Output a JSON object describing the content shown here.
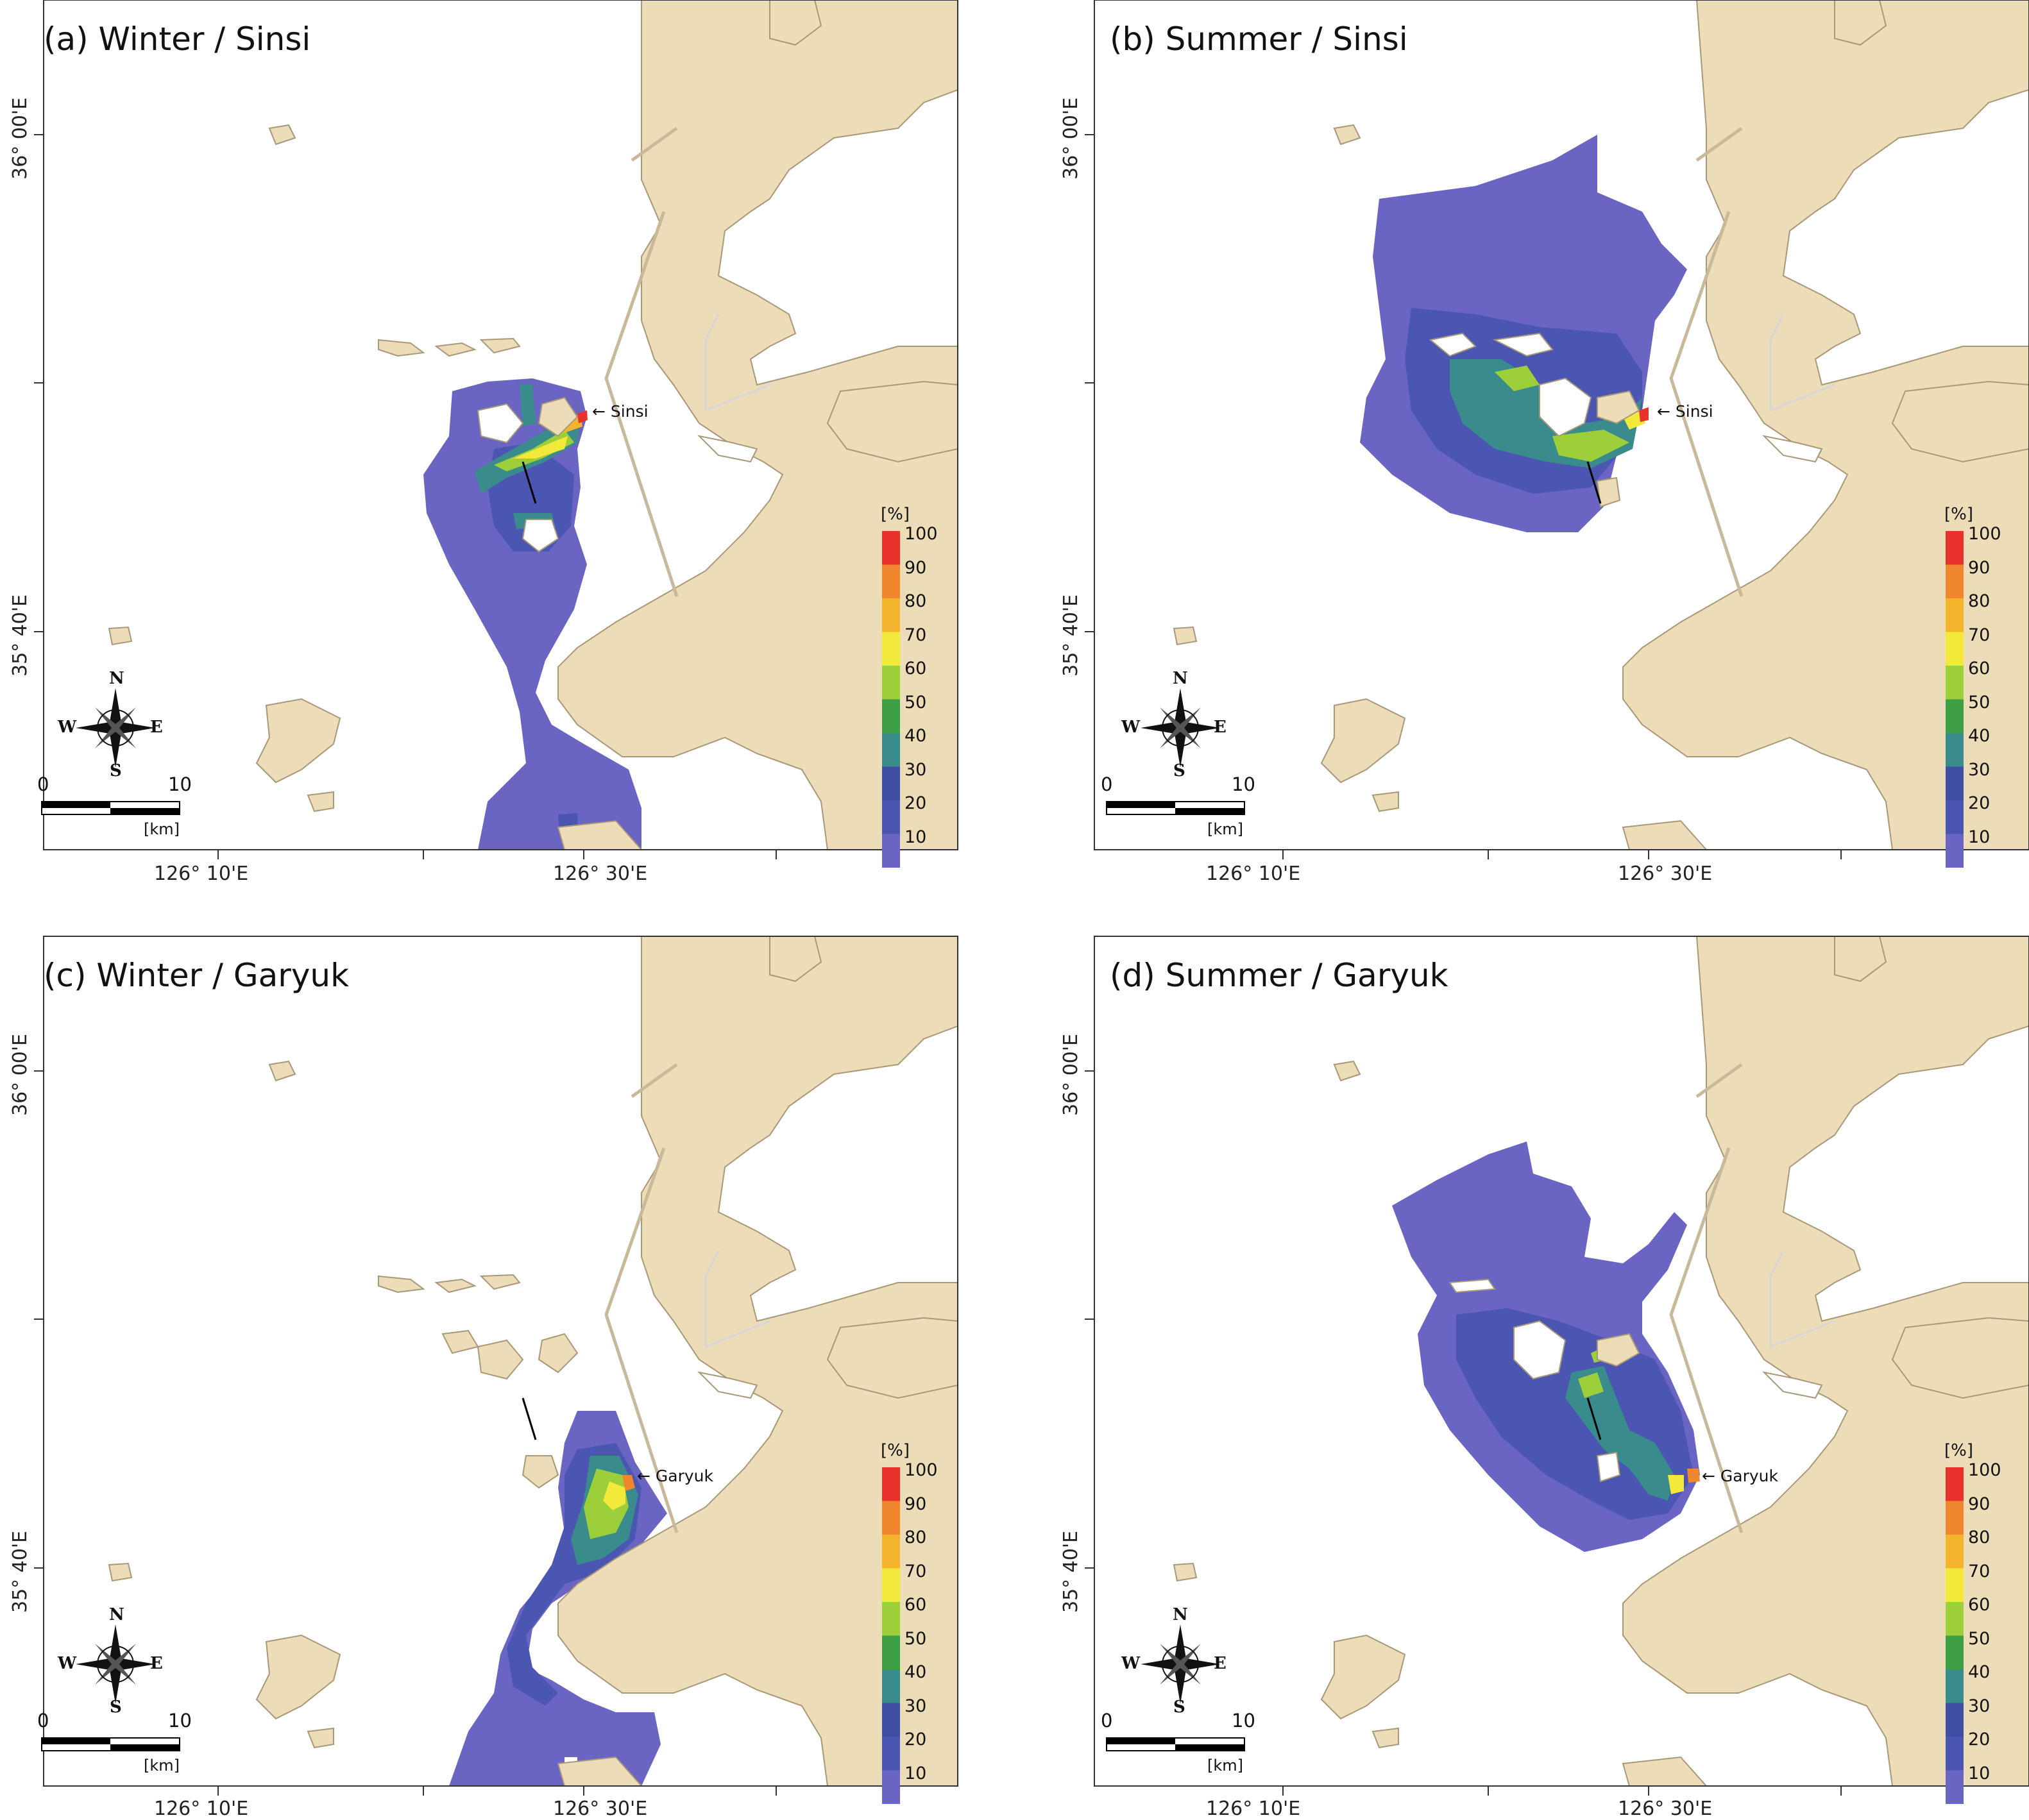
{
  "figure": {
    "lon_labels": [
      "126° 10'E",
      "126° 30'E"
    ],
    "lat_labels": [
      "36° 00'E",
      "35° 40'E"
    ]
  },
  "legend": {
    "unit": "[%]",
    "ticks": [
      "100",
      "90",
      "80",
      "70",
      "60",
      "50",
      "40",
      "30",
      "20",
      "10"
    ],
    "colors": [
      "#e8322b",
      "#f0862d",
      "#f5b42d",
      "#f2e93a",
      "#9ccf3a",
      "#3f9f45",
      "#3a8c8c",
      "#3d4ea3",
      "#4b56b3",
      "#6a64c2"
    ]
  },
  "scale_bar": {
    "start": "0",
    "end": "10",
    "unit": "[km]"
  },
  "compass": {
    "n": "N",
    "s": "S",
    "e": "E",
    "w": "W"
  },
  "colors": {
    "land": "#ecdcb8",
    "land_stroke": "#a89878",
    "water": "#ffffff",
    "frame": "#333333"
  },
  "panels": [
    {
      "title": "(a) Winter / Sinsi",
      "site": "Sinsi"
    },
    {
      "title": "(b) Summer / Sinsi",
      "site": "Sinsi"
    },
    {
      "title": "(c) Winter / Garyuk",
      "site": "Garyuk"
    },
    {
      "title": "(d) Summer / Garyuk",
      "site": "Garyuk"
    }
  ]
}
